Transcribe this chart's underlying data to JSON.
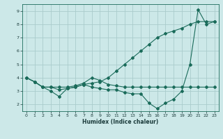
{
  "xlabel": "Humidex (Indice chaleur)",
  "background_color": "#cce8e8",
  "grid_color": "#aacccc",
  "line_color": "#1a6b5a",
  "xlim": [
    -0.5,
    23.5
  ],
  "ylim": [
    1.5,
    9.5
  ],
  "xticks": [
    0,
    1,
    2,
    3,
    4,
    5,
    6,
    7,
    8,
    9,
    10,
    11,
    12,
    13,
    14,
    15,
    16,
    17,
    18,
    19,
    20,
    21,
    22,
    23
  ],
  "yticks": [
    2,
    3,
    4,
    5,
    6,
    7,
    8,
    9
  ],
  "line1_x": [
    0,
    1,
    2,
    3,
    4,
    5,
    6,
    7,
    8,
    9,
    10,
    11,
    12,
    13,
    14,
    15,
    16,
    17,
    18,
    19,
    20,
    21,
    22,
    23
  ],
  "line1_y": [
    4.0,
    3.7,
    3.3,
    3.0,
    2.6,
    3.2,
    3.3,
    3.5,
    3.3,
    3.2,
    3.1,
    3.1,
    2.9,
    2.8,
    2.8,
    2.1,
    1.7,
    2.1,
    2.4,
    3.0,
    5.0,
    9.1,
    8.0,
    8.2
  ],
  "line2_x": [
    0,
    1,
    2,
    3,
    4,
    5,
    6,
    7,
    8,
    9,
    10,
    11,
    12,
    13,
    14,
    15,
    16,
    17,
    18,
    19,
    20,
    21,
    22,
    23
  ],
  "line2_y": [
    4.0,
    3.7,
    3.3,
    3.3,
    3.3,
    3.3,
    3.4,
    3.6,
    4.0,
    3.8,
    3.5,
    3.4,
    3.3,
    3.3,
    3.3,
    3.3,
    3.3,
    3.3,
    3.3,
    3.3,
    3.3,
    3.3,
    3.3,
    3.3
  ],
  "line3_x": [
    0,
    1,
    2,
    3,
    4,
    5,
    6,
    7,
    8,
    9,
    10,
    11,
    12,
    13,
    14,
    15,
    16,
    17,
    18,
    19,
    20,
    21,
    22,
    23
  ],
  "line3_y": [
    4.0,
    3.7,
    3.3,
    3.3,
    3.1,
    3.2,
    3.3,
    3.5,
    3.6,
    3.7,
    4.0,
    4.5,
    5.0,
    5.5,
    6.0,
    6.5,
    7.0,
    7.3,
    7.5,
    7.7,
    8.0,
    8.2,
    8.2,
    8.2
  ]
}
